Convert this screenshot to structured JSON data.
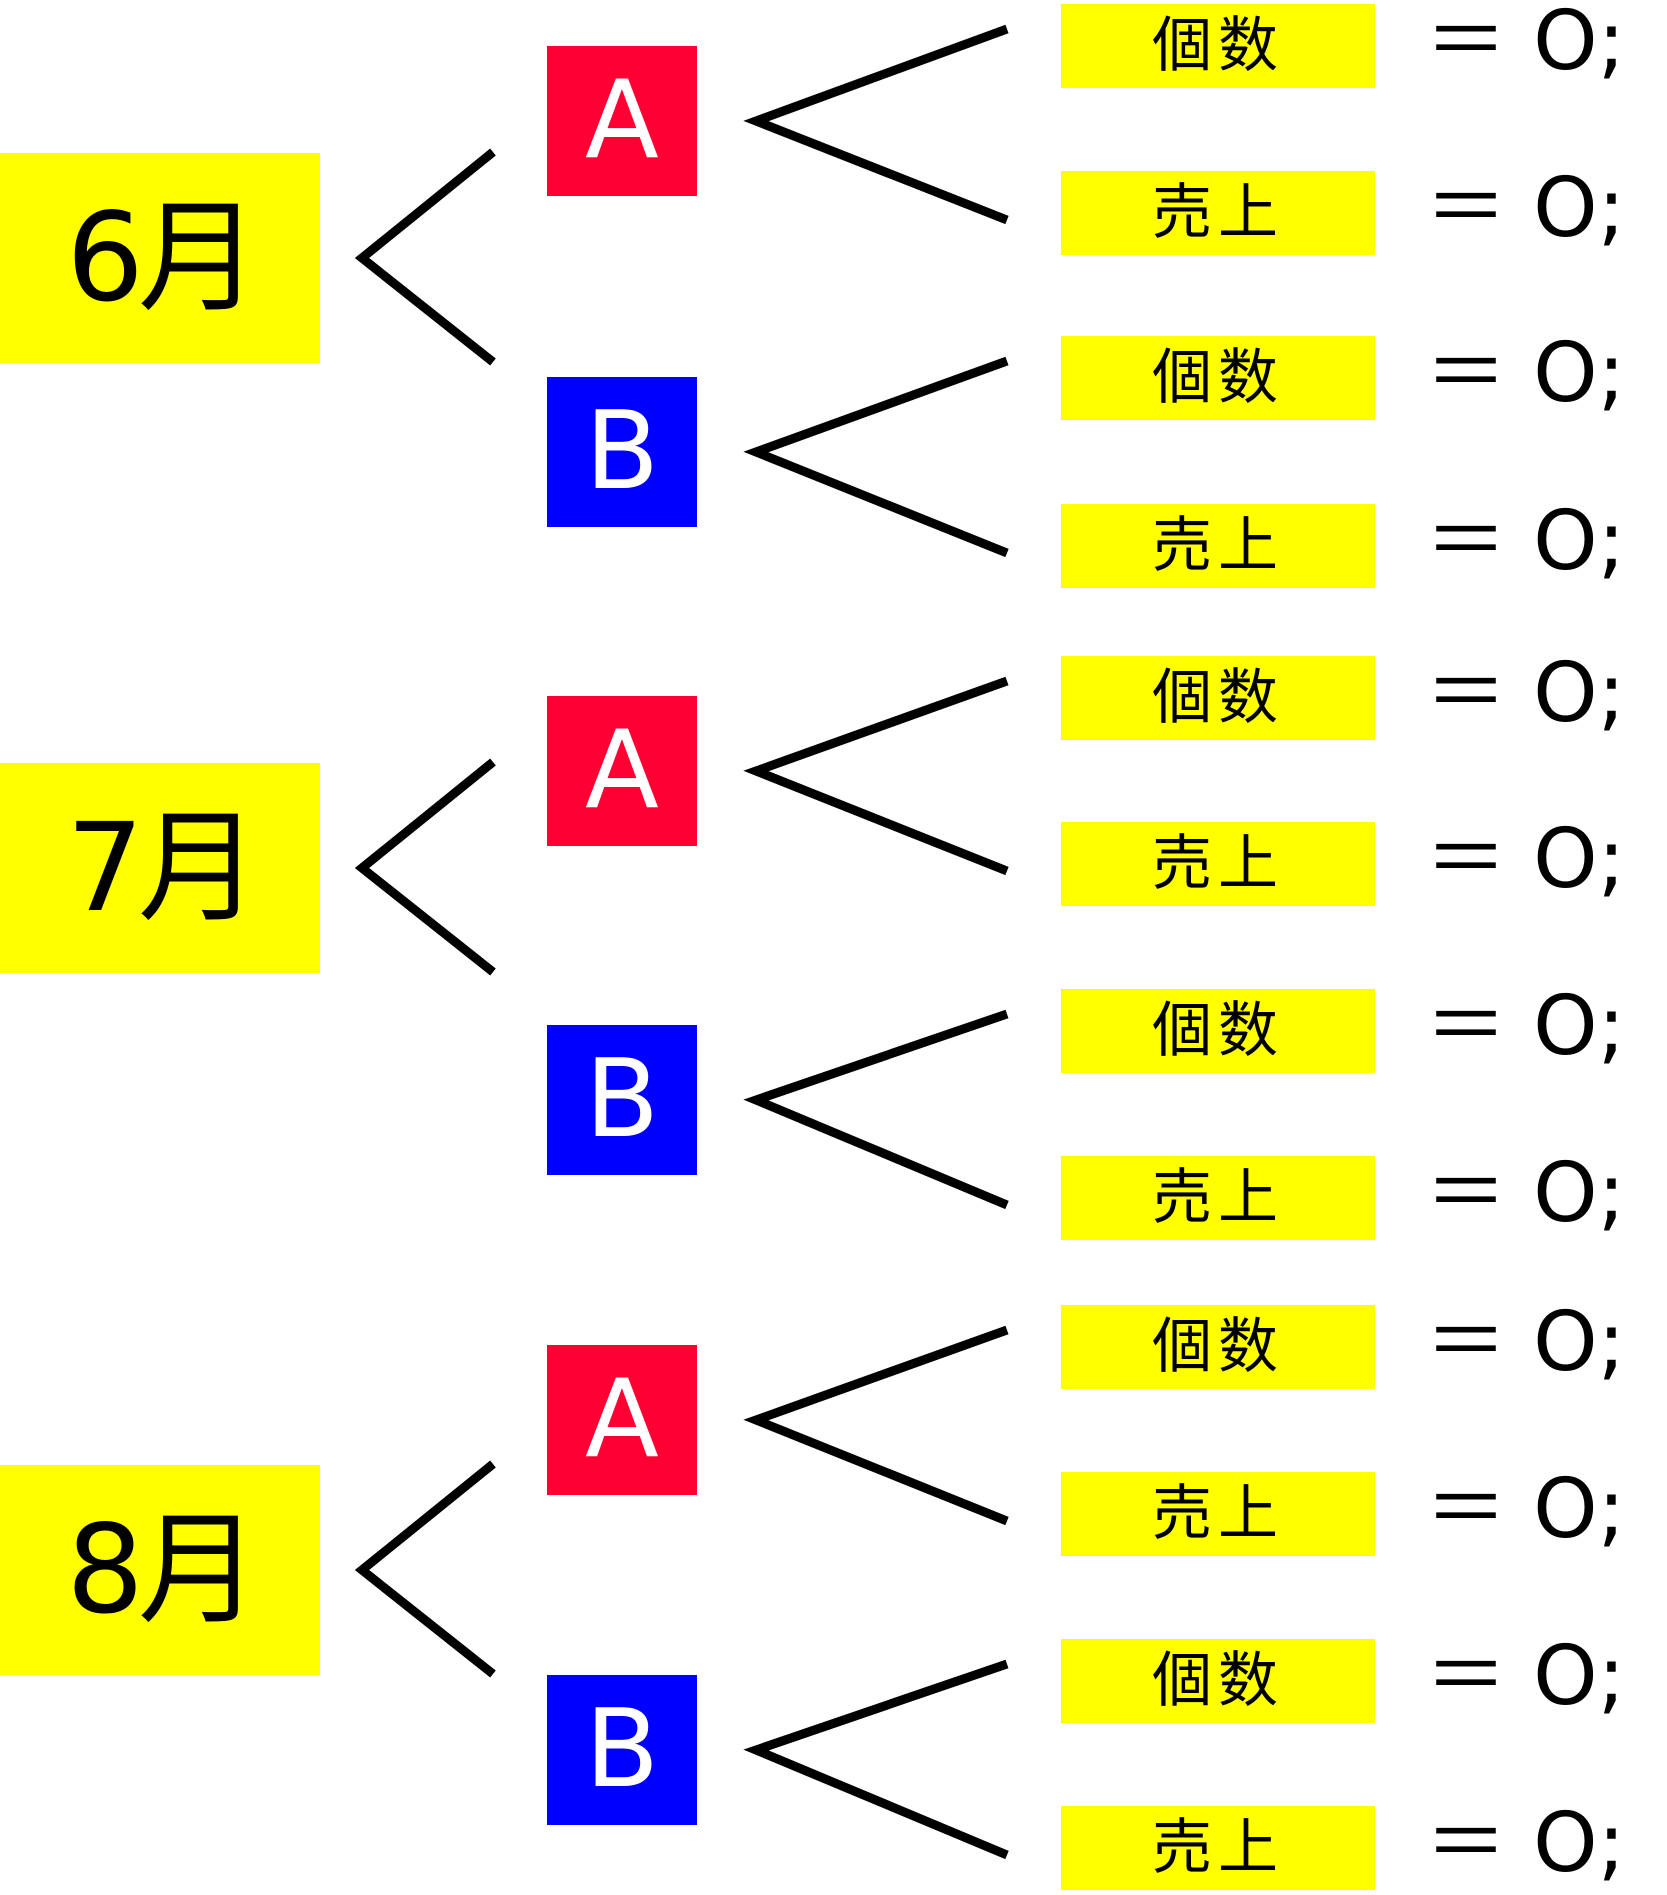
{
  "colors": {
    "highlight": "#ffff00",
    "product_a": "#ff0033",
    "product_b": "#0000ff",
    "line": "#000000"
  },
  "months": [
    {
      "label": "6月",
      "products": [
        {
          "label": "A",
          "color": "#ff0033",
          "items": [
            {
              "label": "個数",
              "value": "＝ O;"
            },
            {
              "label": "売上",
              "value": "＝ O;"
            }
          ]
        },
        {
          "label": "B",
          "color": "#0000ff",
          "items": [
            {
              "label": "個数",
              "value": "＝ O;"
            },
            {
              "label": "売上",
              "value": "＝ O;"
            }
          ]
        }
      ]
    },
    {
      "label": "7月",
      "products": [
        {
          "label": "A",
          "color": "#ff0033",
          "items": [
            {
              "label": "個数",
              "value": "＝ O;"
            },
            {
              "label": "売上",
              "value": "＝ O;"
            }
          ]
        },
        {
          "label": "B",
          "color": "#0000ff",
          "items": [
            {
              "label": "個数",
              "value": "＝ O;"
            },
            {
              "label": "売上",
              "value": "＝ O;"
            }
          ]
        }
      ]
    },
    {
      "label": "8月",
      "products": [
        {
          "label": "A",
          "color": "#ff0033",
          "items": [
            {
              "label": "個数",
              "value": "＝ O;"
            },
            {
              "label": "売上",
              "value": "＝ O;"
            }
          ]
        },
        {
          "label": "B",
          "color": "#0000ff",
          "items": [
            {
              "label": "個数",
              "value": "＝ O;"
            },
            {
              "label": "売上",
              "value": "＝ O;"
            }
          ]
        }
      ]
    }
  ]
}
